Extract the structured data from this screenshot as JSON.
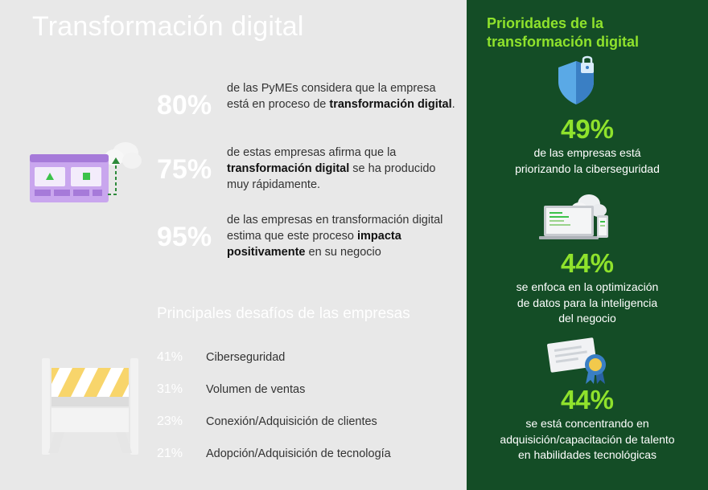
{
  "title": "Transformación digital",
  "stats": [
    {
      "pct": "80%",
      "pre": "de las PyMEs considera que la empresa está en proceso de ",
      "bold": "transformación digital",
      "post": "."
    },
    {
      "pct": "75%",
      "pre": "de estas empresas afirma que la ",
      "bold": "transformación digital",
      "post": " se ha producido muy rápidamente."
    },
    {
      "pct": "95%",
      "pre": "de las empresas en transformación digital estima que este proceso ",
      "bold": "impacta positivamente",
      "post": " en su negocio"
    }
  ],
  "challenges": {
    "title": "Principales desafíos de las empresas",
    "items": [
      {
        "pct": "41%",
        "label": "Ciberseguridad"
      },
      {
        "pct": "31%",
        "label": "Volumen de ventas"
      },
      {
        "pct": "23%",
        "label": "Conexión/Adquisición de clientes"
      },
      {
        "pct": "21%",
        "label": "Adopción/Adquisición de tecnología"
      }
    ]
  },
  "priorities": {
    "title": "Prioridades de la transformación digital",
    "items": [
      {
        "pct": "49%",
        "desc": "de las empresas está priorizando la ciberseguridad",
        "icon": "shield-lock-icon"
      },
      {
        "pct": "44%",
        "desc": "se enfoca en la optimización de datos para la inteligencia del negocio",
        "icon": "laptop-cloud-icon"
      },
      {
        "pct": "44%",
        "desc": "se está concentrando en adquisición/capacitación de talento en habilidades tecnológicas",
        "icon": "certificate-icon"
      }
    ]
  },
  "colors": {
    "accent": "#8fe22c",
    "panel": "#144d26",
    "background": "#e8e8e8"
  }
}
